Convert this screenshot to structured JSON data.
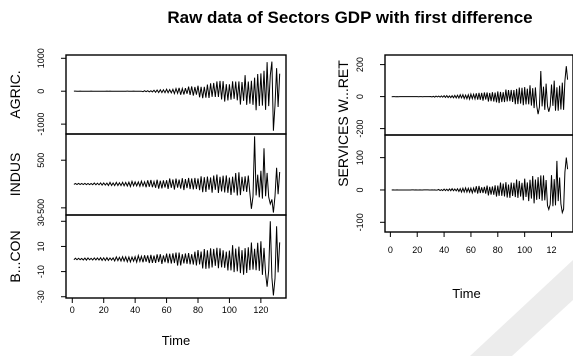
{
  "chart_data": {
    "title": "Raw data of Sectors GDP with first difference",
    "panels_groups": [
      {
        "xlabel": "Time",
        "xticks": [
          "0",
          "20",
          "40",
          "60",
          "80",
          "100",
          "120"
        ],
        "xlim": [
          -4,
          136
        ],
        "panels": [
          {
            "ylabel": "AGRIC.",
            "ylim": [
              -1300,
              1100
            ],
            "yticks": [
              {
                "label": "1000",
                "value": 1000
              },
              {
                "label": "0",
                "value": 0
              },
              {
                "label": "-1000",
                "value": -1000
              }
            ],
            "series": {
              "type": "line",
              "start": 1,
              "end": 132,
              "flat_until": 44,
              "amplitude_start": 20,
              "amplitude_end": 800,
              "growth": 1.7,
              "baseline": 0,
              "spikes": [
                {
                  "x": 128,
                  "y": -1200
                },
                {
                  "x": 124,
                  "y": 880
                },
                {
                  "x": 127,
                  "y": 900
                },
                {
                  "x": 130,
                  "y": 700
                }
              ]
            }
          },
          {
            "ylabel": "INDUS",
            "ylim": [
              -650,
              1050
            ],
            "yticks": [
              {
                "label": "500",
                "value": 500
              },
              {
                "label": "-500",
                "value": -500
              }
            ],
            "series": {
              "type": "line",
              "start": 1,
              "end": 132,
              "flat_until": 0,
              "amplitude_start": 12,
              "amplitude_end": 360,
              "growth": 1.6,
              "baseline": 0,
              "spikes": [
                {
                  "x": 116,
                  "y": 1000
                },
                {
                  "x": 122,
                  "y": 750
                },
                {
                  "x": 114,
                  "y": -520
                },
                {
                  "x": 126,
                  "y": -420
                },
                {
                  "x": 128,
                  "y": -600
                }
              ]
            }
          },
          {
            "ylabel": "B...CON",
            "ylim": [
              -31,
              35
            ],
            "yticks": [
              {
                "label": "30",
                "value": 30
              },
              {
                "label": "10",
                "value": 10
              },
              {
                "label": "-10",
                "value": -10
              },
              {
                "label": "-30",
                "value": -30
              }
            ],
            "series": {
              "type": "line",
              "start": 1,
              "end": 132,
              "flat_until": 0,
              "amplitude_start": 0.8,
              "amplitude_end": 18,
              "growth": 1.9,
              "baseline": 0,
              "spikes": [
                {
                  "x": 126,
                  "y": 30
                },
                {
                  "x": 128,
                  "y": -29
                },
                {
                  "x": 130,
                  "y": 26
                },
                {
                  "x": 124,
                  "y": -22
                }
              ]
            }
          }
        ]
      },
      {
        "xlabel": "Time",
        "xticks": [
          "0",
          "20",
          "40",
          "60",
          "80",
          "100",
          "12"
        ],
        "xlim": [
          -4,
          136
        ],
        "panels": [
          {
            "ylabel": "SERVICES W...RET",
            "ylim": [
              -240,
              260
            ],
            "yticks": [
              {
                "label": "200",
                "value": 200
              },
              {
                "label": "0",
                "value": 0
              },
              {
                "label": "-200",
                "value": -200
              }
            ],
            "series": {
              "type": "line",
              "start": 1,
              "end": 132,
              "flat_until": 30,
              "amplitude_start": 3,
              "amplitude_end": 120,
              "growth": 1.6,
              "baseline": 0,
              "spikes": [
                {
                  "x": 112,
                  "y": 160
                },
                {
                  "x": 131,
                  "y": 190
                },
                {
                  "x": 110,
                  "y": -110
                },
                {
                  "x": 118,
                  "y": -95
                }
              ]
            }
          },
          {
            "ylabel": "",
            "ylim": [
              -130,
              170
            ],
            "yticks": [
              {
                "label": "100",
                "value": 100
              },
              {
                "label": "0",
                "value": 0
              },
              {
                "label": "-100",
                "value": -100
              }
            ],
            "series": {
              "type": "line",
              "start": 1,
              "end": 132,
              "flat_until": 35,
              "amplitude_start": 2,
              "amplitude_end": 70,
              "growth": 1.6,
              "baseline": 0,
              "spikes": [
                {
                  "x": 118,
                  "y": -60
                },
                {
                  "x": 124,
                  "y": 90
                },
                {
                  "x": 128,
                  "y": -70
                },
                {
                  "x": 131,
                  "y": 100
                }
              ]
            }
          }
        ]
      }
    ]
  }
}
